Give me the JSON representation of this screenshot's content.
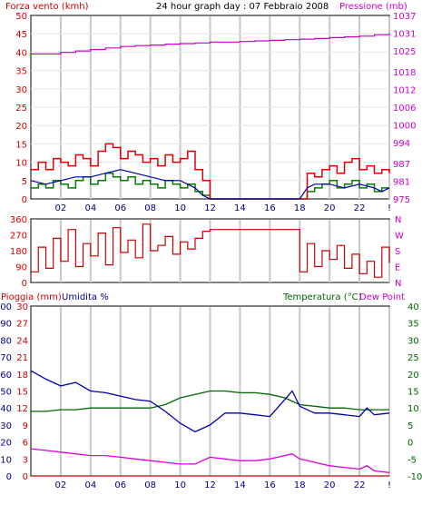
{
  "header": {
    "left_label": "Forza vento (kmh)",
    "title": "24 hour graph day : 07 Febbraio 2008",
    "right_label": "Pressione (mb)"
  },
  "panel3_header": {
    "rain_label": "Pioggia (mm)",
    "hum_label": "Umidita %",
    "temp_label": "Temperatura (°C)",
    "dew_label": "Dew Point"
  },
  "colors": {
    "wind_gust": "#e00000",
    "wind_avg": "#008000",
    "wind_dir": "#cc0000",
    "pressure": "#cc00cc",
    "temperature": "#006600",
    "humidity": "#0000aa",
    "dew_point": "#dd00dd",
    "rain": "#cc0000",
    "grid": "#c8c8c8",
    "left_axis": "#cc0000",
    "right_axis": "#cc00cc",
    "temp_axis": "#006600",
    "hum_axis": "#000099"
  },
  "chart_data": [
    {
      "type": "line",
      "title": "24 hour graph day : 07 Febbraio 2008",
      "xlabel": "",
      "x_ticks": [
        "02",
        "04",
        "06",
        "08",
        "10",
        "12",
        "14",
        "16",
        "18",
        "20",
        "22",
        "!"
      ],
      "xlim": [
        0,
        24
      ],
      "ylabel_left": "Forza vento (kmh)",
      "ylim_left": [
        0,
        50
      ],
      "y_ticks_left": [
        "0",
        "5",
        "10",
        "15",
        "20",
        "25",
        "30",
        "35",
        "40",
        "45",
        "50"
      ],
      "ylabel_right": "Pressione (mb)",
      "ylim_right": [
        975,
        1037
      ],
      "y_ticks_right": [
        "975",
        "981",
        "987",
        "994",
        "1000",
        "1006",
        "1012",
        "1018",
        "1025",
        "1031",
        "1037"
      ],
      "series": [
        {
          "axis": "left",
          "style": "step",
          "x": [
            0,
            0.5,
            1,
            1.5,
            2,
            2.5,
            3,
            3.5,
            4,
            4.5,
            5,
            5.5,
            6,
            6.5,
            7,
            7.5,
            8,
            8.5,
            9,
            9.5,
            10,
            10.5,
            11,
            11.5,
            12,
            18,
            18.5,
            19,
            19.5,
            20,
            20.5,
            21,
            21.5,
            22,
            22.5,
            23,
            23.5,
            24
          ],
          "values": [
            8,
            10,
            8,
            11,
            10,
            9,
            12,
            11,
            9,
            13,
            15,
            14,
            11,
            13,
            12,
            10,
            11,
            9,
            12,
            10,
            11,
            13,
            8,
            5,
            0,
            0,
            7,
            6,
            8,
            9,
            7,
            10,
            11,
            8,
            9,
            7,
            8,
            7
          ]
        },
        {
          "axis": "left",
          "style": "step",
          "x": [
            0,
            0.5,
            1,
            1.5,
            2,
            2.5,
            3,
            3.5,
            4,
            4.5,
            5,
            5.5,
            6,
            6.5,
            7,
            7.5,
            8,
            8.5,
            9,
            9.5,
            10,
            10.5,
            11,
            11.5,
            12,
            18,
            18.5,
            19,
            19.5,
            20,
            20.5,
            21,
            21.5,
            22,
            22.5,
            23,
            23.5,
            24
          ],
          "values": [
            3,
            4,
            3,
            5,
            4,
            3,
            5,
            6,
            4,
            5,
            7,
            6,
            5,
            6,
            4,
            5,
            4,
            3,
            5,
            4,
            3,
            4,
            2,
            1,
            0,
            0,
            2,
            3,
            4,
            5,
            3,
            4,
            5,
            3,
            4,
            2,
            3,
            3
          ]
        },
        {
          "axis": "left",
          "style": "line",
          "x": [
            0,
            1,
            2,
            3,
            4,
            5,
            6,
            7,
            8,
            9,
            10,
            11,
            11.5,
            12,
            18,
            18.5,
            19,
            20,
            21,
            22,
            23,
            23.5,
            24
          ],
          "values": [
            5,
            4,
            5,
            6,
            6,
            7,
            8,
            7,
            6,
            5,
            5,
            3,
            1,
            0,
            0,
            3,
            4,
            4,
            3,
            4,
            3,
            2,
            3
          ]
        },
        {
          "axis": "right",
          "style": "step",
          "x": [
            0,
            1,
            2,
            3,
            4,
            5,
            6,
            7,
            8,
            9,
            10,
            11,
            12,
            13,
            14,
            15,
            16,
            17,
            18,
            19,
            20,
            21,
            22,
            23,
            24
          ],
          "values": [
            1024,
            1024,
            1024.5,
            1025,
            1025.5,
            1026,
            1026.5,
            1026.8,
            1027,
            1027.3,
            1027.5,
            1027.7,
            1028,
            1028,
            1028.2,
            1028.4,
            1028.6,
            1028.8,
            1029,
            1029.2,
            1029.5,
            1029.8,
            1030,
            1030.5,
            1031
          ]
        }
      ]
    },
    {
      "type": "line",
      "ylabel_right": "N W S E N",
      "ylim": [
        0,
        360
      ],
      "y_ticks": [
        "0",
        "90",
        "180",
        "270",
        "360"
      ],
      "compass": [
        "N",
        "W",
        "S",
        "E",
        "N"
      ],
      "xlim": [
        0,
        24
      ],
      "series": [
        {
          "x": [
            0,
            0.5,
            1,
            1.5,
            2,
            2.5,
            3,
            3.5,
            4,
            4.5,
            5,
            5.5,
            6,
            6.5,
            7,
            7.5,
            8,
            8.5,
            9,
            9.5,
            10,
            10.5,
            11,
            11.5,
            12,
            18,
            18.5,
            19,
            19.5,
            20,
            20.5,
            21,
            21.5,
            22,
            22.5,
            23,
            23.5,
            24
          ],
          "values": [
            60,
            200,
            80,
            250,
            120,
            300,
            90,
            220,
            150,
            280,
            100,
            310,
            170,
            240,
            140,
            330,
            180,
            210,
            260,
            160,
            230,
            190,
            250,
            290,
            300,
            60,
            220,
            90,
            180,
            130,
            210,
            80,
            160,
            50,
            120,
            30,
            200,
            110
          ]
        }
      ]
    },
    {
      "type": "line",
      "xlim": [
        0,
        24
      ],
      "x_ticks": [
        "02",
        "04",
        "06",
        "08",
        "10",
        "12",
        "14",
        "16",
        "18",
        "20",
        "22",
        "!"
      ],
      "ylabel_left_rain": "Pioggia (mm)",
      "ylim_rain": [
        0,
        30
      ],
      "y_ticks_rain": [
        "0",
        "3",
        "6",
        "9",
        "12",
        "15",
        "18",
        "21",
        "24",
        "27",
        "30"
      ],
      "ylabel_left_hum": "Umidita %",
      "ylim_hum": [
        0,
        100
      ],
      "y_ticks_hum": [
        "0",
        "10",
        "20",
        "30",
        "40",
        "50",
        "60",
        "70",
        "80",
        "90",
        "100"
      ],
      "ylabel_right": "Temperatura (°C)",
      "ylim_temp": [
        -10,
        40
      ],
      "y_ticks_temp": [
        "-10",
        "-5",
        "0",
        "5",
        "10",
        "15",
        "20",
        "25",
        "30",
        "35",
        "40"
      ],
      "series": [
        {
          "name": "Temperatura (°C)",
          "axis": "temp",
          "x": [
            0,
            1,
            2,
            3,
            4,
            5,
            6,
            7,
            8,
            9,
            10,
            11,
            12,
            13,
            14,
            15,
            16,
            17,
            18,
            19,
            20,
            21,
            22,
            23,
            24
          ],
          "values": [
            9,
            9,
            9.5,
            9.5,
            10,
            10,
            10,
            10,
            10,
            11,
            13,
            14,
            15,
            15,
            14.5,
            14.5,
            14,
            13,
            11,
            10.5,
            10,
            10,
            9.5,
            9.5,
            9.5
          ]
        },
        {
          "name": "Umidita %",
          "axis": "hum",
          "x": [
            0,
            1,
            2,
            3,
            4,
            5,
            6,
            7,
            8,
            9,
            10,
            11,
            12,
            13,
            14,
            15,
            16,
            16.5,
            17,
            17.5,
            18,
            19,
            20,
            21,
            22,
            22.5,
            23,
            24
          ],
          "values": [
            62,
            57,
            53,
            55,
            50,
            49,
            47,
            45,
            44,
            38,
            31,
            26,
            30,
            37,
            37,
            36,
            35,
            40,
            45,
            50,
            41,
            37,
            37,
            36,
            35,
            40,
            36,
            37
          ]
        },
        {
          "name": "Dew Point",
          "axis": "temp",
          "x": [
            0,
            1,
            2,
            3,
            4,
            5,
            6,
            7,
            8,
            9,
            10,
            11,
            12,
            13,
            14,
            15,
            16,
            17,
            17.5,
            18,
            19,
            20,
            21,
            22,
            22.5,
            23,
            24
          ],
          "values": [
            -2,
            -2.5,
            -3,
            -3.5,
            -4,
            -4,
            -4.5,
            -5,
            -5.5,
            -6,
            -6.5,
            -6.5,
            -4.5,
            -5,
            -5.5,
            -5.5,
            -5,
            -4,
            -3.5,
            -5,
            -6,
            -7,
            -7.5,
            -8,
            -7,
            -8.5,
            -9
          ]
        },
        {
          "name": "Pioggia (mm)",
          "axis": "rain",
          "x": [
            0,
            24
          ],
          "values": [
            0,
            0
          ]
        }
      ]
    }
  ]
}
